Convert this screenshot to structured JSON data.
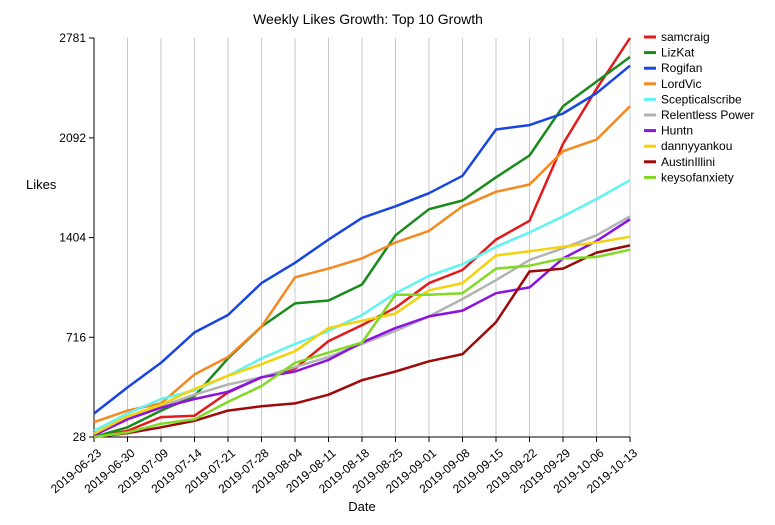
{
  "chart_data": {
    "type": "line",
    "title": "Weekly Likes Growth: Top 10 Growth",
    "xlabel": "Date",
    "ylabel": "Likes",
    "ylim": [
      28,
      2781
    ],
    "yticks": [
      28,
      716,
      1404,
      2092,
      2781
    ],
    "grid": "vertical",
    "legend_position": "right",
    "x": [
      "2019-06-23",
      "2019-06-30",
      "2019-07-09",
      "2019-07-14",
      "2019-07-21",
      "2019-07-28",
      "2019-08-04",
      "2019-08-11",
      "2019-08-18",
      "2019-08-25",
      "2019-09-01",
      "2019-09-08",
      "2019-09-15",
      "2019-09-22",
      "2019-09-29",
      "2019-10-06",
      "2019-10-13"
    ],
    "series": [
      {
        "name": "samcraig",
        "color": "#e31a1c",
        "values": [
          28,
          70,
          165,
          175,
          335,
          440,
          500,
          690,
          800,
          920,
          1090,
          1180,
          1390,
          1520,
          2050,
          2430,
          2781
        ]
      },
      {
        "name": "LizKat",
        "color": "#1a8a1a",
        "values": [
          28,
          95,
          210,
          310,
          570,
          790,
          950,
          970,
          1080,
          1420,
          1600,
          1660,
          1820,
          1970,
          2310,
          2480,
          2650
        ]
      },
      {
        "name": "Rogifan",
        "color": "#1746e0",
        "values": [
          190,
          370,
          540,
          750,
          870,
          1090,
          1230,
          1390,
          1540,
          1620,
          1710,
          1830,
          2150,
          2180,
          2260,
          2400,
          2590
        ]
      },
      {
        "name": "LordVic",
        "color": "#f5891f",
        "values": [
          130,
          210,
          260,
          460,
          580,
          790,
          1130,
          1190,
          1260,
          1370,
          1450,
          1620,
          1720,
          1770,
          2000,
          2080,
          2310
        ]
      },
      {
        "name": "Scepticalscribe",
        "color": "#5ef5f0",
        "values": [
          70,
          190,
          290,
          350,
          450,
          570,
          670,
          760,
          870,
          1020,
          1140,
          1220,
          1340,
          1440,
          1550,
          1670,
          1800
        ]
      },
      {
        "name": "Relentless Power",
        "color": "#b3b3b3",
        "values": [
          50,
          170,
          240,
          320,
          390,
          440,
          510,
          580,
          670,
          760,
          860,
          980,
          1110,
          1250,
          1330,
          1420,
          1550
        ]
      },
      {
        "name": "Huntn",
        "color": "#8b12e0",
        "values": [
          40,
          150,
          230,
          290,
          340,
          440,
          480,
          560,
          680,
          780,
          860,
          900,
          1020,
          1060,
          1260,
          1380,
          1530
        ]
      },
      {
        "name": "dannyyankou",
        "color": "#f5d20a",
        "values": [
          50,
          170,
          250,
          360,
          450,
          530,
          620,
          780,
          830,
          880,
          1040,
          1090,
          1280,
          1310,
          1340,
          1370,
          1410
        ]
      },
      {
        "name": "AustinIllini",
        "color": "#9c0a0a",
        "values": [
          28,
          55,
          95,
          140,
          210,
          240,
          260,
          320,
          420,
          480,
          550,
          600,
          820,
          1170,
          1190,
          1300,
          1350
        ]
      },
      {
        "name": "keysofanxiety",
        "color": "#82d924",
        "values": [
          28,
          60,
          120,
          150,
          270,
          380,
          540,
          610,
          680,
          1010,
          1010,
          1020,
          1190,
          1210,
          1260,
          1270,
          1320
        ]
      }
    ]
  }
}
